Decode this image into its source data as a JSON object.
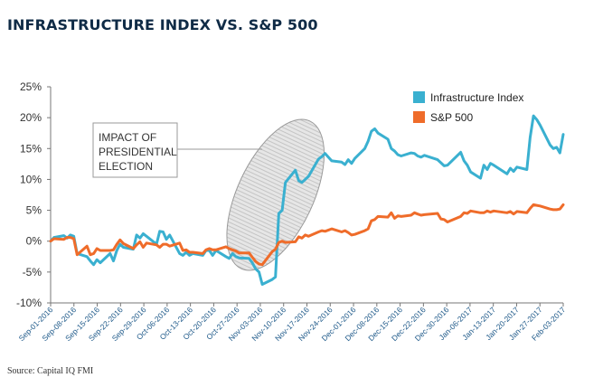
{
  "header": {
    "title": "INFRASTRUCTURE INDEX VS. S&P 500"
  },
  "footer": {
    "source": "Source: Capital IQ FMI"
  },
  "annotation": {
    "lines": [
      "IMPACT OF",
      "PRESIDENTIAL",
      "ELECTION"
    ]
  },
  "colors": {
    "infrastructure": "#3ab0d0",
    "sp500": "#ef6c2a",
    "axis": "#777777",
    "oval_fill": "#d9d9d9"
  },
  "chart_data": {
    "type": "line",
    "title": "INFRASTRUCTURE INDEX VS. S&P 500",
    "xlabel": "",
    "ylabel": "",
    "ylim": [
      -10,
      25
    ],
    "yticks": [
      -10,
      -5,
      0,
      5,
      10,
      15,
      20,
      25
    ],
    "ytick_labels": [
      "-10%",
      "-5%",
      "0%",
      "5%",
      "10%",
      "15%",
      "20%",
      "25%"
    ],
    "xlim": [
      "2016-09-01",
      "2017-02-03"
    ],
    "xtick_labels": [
      "Sep-01-2016",
      "Sep-08-2016",
      "Sep-15-2016",
      "Sep-22-2016",
      "Sep-29-2016",
      "Oct-06-2016",
      "Oct-13-2016",
      "Oct-20-2016",
      "Oct-27-2016",
      "Nov-03-2016",
      "Nov-10-2016",
      "Nov-17-2016",
      "Nov-24-2016",
      "Dec-01-2016",
      "Dec-08-2016",
      "Dec-15-2016",
      "Dec-22-2016",
      "Dec-30-2016",
      "Jan-06-2017",
      "Jan-13-2017",
      "Jan-20-2017",
      "Jan-27-2017",
      "Feb-03-2017"
    ],
    "legend_position": "top-right",
    "grid": false,
    "series": [
      {
        "name": "Infrastructure Index",
        "points": [
          [
            "2016-09-01",
            0.0
          ],
          [
            "2016-09-02",
            0.6
          ],
          [
            "2016-09-05",
            0.9
          ],
          [
            "2016-09-06",
            0.5
          ],
          [
            "2016-09-07",
            1.0
          ],
          [
            "2016-09-08",
            0.8
          ],
          [
            "2016-09-09",
            -2.0
          ],
          [
            "2016-09-12",
            -2.5
          ],
          [
            "2016-09-13",
            -3.2
          ],
          [
            "2016-09-14",
            -3.8
          ],
          [
            "2016-09-15",
            -3.0
          ],
          [
            "2016-09-16",
            -3.5
          ],
          [
            "2016-09-19",
            -2.0
          ],
          [
            "2016-09-20",
            -3.2
          ],
          [
            "2016-09-21",
            -1.5
          ],
          [
            "2016-09-22",
            -0.5
          ],
          [
            "2016-09-23",
            -1.0
          ],
          [
            "2016-09-26",
            -1.3
          ],
          [
            "2016-09-27",
            1.0
          ],
          [
            "2016-09-28",
            0.5
          ],
          [
            "2016-09-29",
            1.2
          ],
          [
            "2016-09-30",
            0.8
          ],
          [
            "2016-10-03",
            -0.5
          ],
          [
            "2016-10-04",
            1.6
          ],
          [
            "2016-10-05",
            1.5
          ],
          [
            "2016-10-06",
            0.3
          ],
          [
            "2016-10-07",
            1.0
          ],
          [
            "2016-10-10",
            -2.0
          ],
          [
            "2016-10-11",
            -2.3
          ],
          [
            "2016-10-12",
            -1.8
          ],
          [
            "2016-10-13",
            -2.3
          ],
          [
            "2016-10-14",
            -2.0
          ],
          [
            "2016-10-17",
            -2.3
          ],
          [
            "2016-10-18",
            -1.5
          ],
          [
            "2016-10-19",
            -1.5
          ],
          [
            "2016-10-20",
            -2.3
          ],
          [
            "2016-10-21",
            -1.5
          ],
          [
            "2016-10-24",
            -2.5
          ],
          [
            "2016-10-25",
            -2.8
          ],
          [
            "2016-10-26",
            -2.0
          ],
          [
            "2016-10-27",
            -2.5
          ],
          [
            "2016-10-28",
            -2.7
          ],
          [
            "2016-10-31",
            -2.8
          ],
          [
            "2016-11-01",
            -3.5
          ],
          [
            "2016-11-02",
            -4.5
          ],
          [
            "2016-11-03",
            -5.0
          ],
          [
            "2016-11-04",
            -7.0
          ],
          [
            "2016-11-07",
            -6.2
          ],
          [
            "2016-11-08",
            -5.8
          ],
          [
            "2016-11-09",
            4.5
          ],
          [
            "2016-11-10",
            5.0
          ],
          [
            "2016-11-11",
            9.5
          ],
          [
            "2016-11-14",
            11.5
          ],
          [
            "2016-11-15",
            9.8
          ],
          [
            "2016-11-16",
            9.5
          ],
          [
            "2016-11-17",
            10.0
          ],
          [
            "2016-11-18",
            10.5
          ],
          [
            "2016-11-21",
            13.3
          ],
          [
            "2016-11-22",
            13.7
          ],
          [
            "2016-11-23",
            14.2
          ],
          [
            "2016-11-25",
            13.0
          ],
          [
            "2016-11-28",
            12.8
          ],
          [
            "2016-11-29",
            12.4
          ],
          [
            "2016-11-30",
            13.2
          ],
          [
            "2016-12-01",
            12.6
          ],
          [
            "2016-12-02",
            13.4
          ],
          [
            "2016-12-05",
            15.0
          ],
          [
            "2016-12-06",
            16.2
          ],
          [
            "2016-12-07",
            17.8
          ],
          [
            "2016-12-08",
            18.2
          ],
          [
            "2016-12-09",
            17.5
          ],
          [
            "2016-12-12",
            16.5
          ],
          [
            "2016-12-13",
            15.0
          ],
          [
            "2016-12-14",
            14.6
          ],
          [
            "2016-12-15",
            14.0
          ],
          [
            "2016-12-16",
            13.8
          ],
          [
            "2016-12-19",
            14.3
          ],
          [
            "2016-12-20",
            14.2
          ],
          [
            "2016-12-21",
            13.8
          ],
          [
            "2016-12-22",
            13.6
          ],
          [
            "2016-12-23",
            13.9
          ],
          [
            "2016-12-27",
            13.2
          ],
          [
            "2016-12-28",
            12.7
          ],
          [
            "2016-12-29",
            12.2
          ],
          [
            "2016-12-30",
            12.3
          ],
          [
            "2017-01-03",
            14.4
          ],
          [
            "2017-01-04",
            13.0
          ],
          [
            "2017-01-05",
            12.3
          ],
          [
            "2017-01-06",
            11.2
          ],
          [
            "2017-01-09",
            10.2
          ],
          [
            "2017-01-10",
            12.3
          ],
          [
            "2017-01-11",
            11.6
          ],
          [
            "2017-01-12",
            12.6
          ],
          [
            "2017-01-13",
            12.3
          ],
          [
            "2017-01-17",
            10.9
          ],
          [
            "2017-01-18",
            11.8
          ],
          [
            "2017-01-19",
            11.3
          ],
          [
            "2017-01-20",
            12.0
          ],
          [
            "2017-01-23",
            11.6
          ],
          [
            "2017-01-24",
            16.8
          ],
          [
            "2017-01-25",
            20.3
          ],
          [
            "2017-01-26",
            19.7
          ],
          [
            "2017-01-27",
            18.8
          ],
          [
            "2017-01-30",
            15.6
          ],
          [
            "2017-01-31",
            15.0
          ],
          [
            "2017-02-01",
            15.2
          ],
          [
            "2017-02-02",
            14.3
          ],
          [
            "2017-02-03",
            17.3
          ]
        ]
      },
      {
        "name": "S&P 500",
        "points": [
          [
            "2016-09-01",
            0.0
          ],
          [
            "2016-09-02",
            0.4
          ],
          [
            "2016-09-05",
            0.3
          ],
          [
            "2016-09-06",
            0.6
          ],
          [
            "2016-09-07",
            0.6
          ],
          [
            "2016-09-08",
            0.4
          ],
          [
            "2016-09-09",
            -2.2
          ],
          [
            "2016-09-12",
            -0.8
          ],
          [
            "2016-09-13",
            -2.2
          ],
          [
            "2016-09-14",
            -2.0
          ],
          [
            "2016-09-15",
            -1.2
          ],
          [
            "2016-09-16",
            -1.5
          ],
          [
            "2016-09-19",
            -1.5
          ],
          [
            "2016-09-20",
            -1.4
          ],
          [
            "2016-09-21",
            -0.5
          ],
          [
            "2016-09-22",
            0.2
          ],
          [
            "2016-09-23",
            -0.4
          ],
          [
            "2016-09-26",
            -1.2
          ],
          [
            "2016-09-27",
            -0.6
          ],
          [
            "2016-09-28",
            -0.1
          ],
          [
            "2016-09-29",
            -1.0
          ],
          [
            "2016-09-30",
            -0.3
          ],
          [
            "2016-10-03",
            -0.6
          ],
          [
            "2016-10-04",
            -1.0
          ],
          [
            "2016-10-05",
            -0.5
          ],
          [
            "2016-10-06",
            -0.5
          ],
          [
            "2016-10-07",
            -0.8
          ],
          [
            "2016-10-10",
            -0.3
          ],
          [
            "2016-10-11",
            -1.5
          ],
          [
            "2016-10-12",
            -1.4
          ],
          [
            "2016-10-13",
            -1.8
          ],
          [
            "2016-10-14",
            -1.8
          ],
          [
            "2016-10-17",
            -2.0
          ],
          [
            "2016-10-18",
            -1.4
          ],
          [
            "2016-10-19",
            -1.2
          ],
          [
            "2016-10-20",
            -1.4
          ],
          [
            "2016-10-21",
            -1.4
          ],
          [
            "2016-10-24",
            -0.9
          ],
          [
            "2016-10-25",
            -1.2
          ],
          [
            "2016-10-26",
            -1.4
          ],
          [
            "2016-10-27",
            -1.6
          ],
          [
            "2016-10-28",
            -1.9
          ],
          [
            "2016-10-31",
            -1.9
          ],
          [
            "2016-11-01",
            -2.6
          ],
          [
            "2016-11-02",
            -3.3
          ],
          [
            "2016-11-03",
            -3.7
          ],
          [
            "2016-11-04",
            -3.8
          ],
          [
            "2016-11-07",
            -1.7
          ],
          [
            "2016-11-08",
            -1.3
          ],
          [
            "2016-11-09",
            -0.2
          ],
          [
            "2016-11-10",
            0.0
          ],
          [
            "2016-11-11",
            -0.2
          ],
          [
            "2016-11-14",
            -0.1
          ],
          [
            "2016-11-15",
            0.7
          ],
          [
            "2016-11-16",
            0.5
          ],
          [
            "2016-11-17",
            1.0
          ],
          [
            "2016-11-18",
            0.8
          ],
          [
            "2016-11-21",
            1.5
          ],
          [
            "2016-11-22",
            1.7
          ],
          [
            "2016-11-23",
            1.6
          ],
          [
            "2016-11-25",
            2.0
          ],
          [
            "2016-11-28",
            1.5
          ],
          [
            "2016-11-29",
            1.7
          ],
          [
            "2016-11-30",
            1.4
          ],
          [
            "2016-12-01",
            1.0
          ],
          [
            "2016-12-02",
            1.1
          ],
          [
            "2016-12-05",
            1.7
          ],
          [
            "2016-12-06",
            2.0
          ],
          [
            "2016-12-07",
            3.3
          ],
          [
            "2016-12-08",
            3.5
          ],
          [
            "2016-12-09",
            4.0
          ],
          [
            "2016-12-12",
            3.9
          ],
          [
            "2016-12-13",
            4.6
          ],
          [
            "2016-12-14",
            3.7
          ],
          [
            "2016-12-15",
            4.1
          ],
          [
            "2016-12-16",
            4.0
          ],
          [
            "2016-12-19",
            4.2
          ],
          [
            "2016-12-20",
            4.6
          ],
          [
            "2016-12-21",
            4.4
          ],
          [
            "2016-12-22",
            4.2
          ],
          [
            "2016-12-23",
            4.3
          ],
          [
            "2016-12-27",
            4.5
          ],
          [
            "2016-12-28",
            3.6
          ],
          [
            "2016-12-29",
            3.5
          ],
          [
            "2016-12-30",
            3.1
          ],
          [
            "2017-01-03",
            4.0
          ],
          [
            "2017-01-04",
            4.6
          ],
          [
            "2017-01-05",
            4.5
          ],
          [
            "2017-01-06",
            4.9
          ],
          [
            "2017-01-09",
            4.6
          ],
          [
            "2017-01-10",
            4.6
          ],
          [
            "2017-01-11",
            4.9
          ],
          [
            "2017-01-12",
            4.7
          ],
          [
            "2017-01-13",
            4.9
          ],
          [
            "2017-01-17",
            4.6
          ],
          [
            "2017-01-18",
            4.8
          ],
          [
            "2017-01-19",
            4.4
          ],
          [
            "2017-01-20",
            4.8
          ],
          [
            "2017-01-23",
            4.6
          ],
          [
            "2017-01-24",
            5.3
          ],
          [
            "2017-01-25",
            5.9
          ],
          [
            "2017-01-26",
            5.8
          ],
          [
            "2017-01-27",
            5.7
          ],
          [
            "2017-01-30",
            5.2
          ],
          [
            "2017-01-31",
            5.1
          ],
          [
            "2017-02-01",
            5.1
          ],
          [
            "2017-02-02",
            5.2
          ],
          [
            "2017-02-03",
            5.9
          ]
        ]
      }
    ]
  }
}
